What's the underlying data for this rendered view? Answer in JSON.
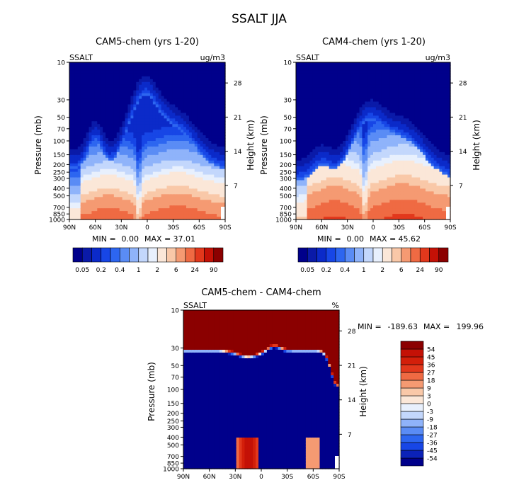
{
  "page_title": "SSALT JJA",
  "chart_data": [
    {
      "type": "heatmap",
      "title": "CAM5-chem (yrs 1-20)",
      "variable": "SSALT",
      "units": "ug/m3",
      "ylabel": "Pressure (mb)",
      "y2label": "Height (km)",
      "x_ticks": [
        "90N",
        "60N",
        "30N",
        "0",
        "30S",
        "60S",
        "90S"
      ],
      "y_ticks": [
        "10",
        "30",
        "50",
        "70",
        "100",
        "150",
        "200",
        "250",
        "300",
        "400",
        "500",
        "700",
        "850",
        "1000"
      ],
      "y2_ticks": [
        "28",
        "21",
        "14",
        "7"
      ],
      "min_label": "MIN =",
      "min": "0.00",
      "max_label": "MAX =",
      "max": "37.01",
      "levels": [
        0.05,
        0.1,
        0.2,
        0.3,
        0.4,
        0.6,
        1,
        1.5,
        2,
        4,
        6,
        12,
        24,
        48,
        90
      ],
      "level_labels": [
        "0.05",
        "0.2",
        "0.4",
        "1",
        "2",
        "6",
        "24",
        "90"
      ],
      "colors": [
        "#00008b",
        "#0a1aa8",
        "#0b2ac9",
        "#1746e6",
        "#2d66f0",
        "#5a8cf5",
        "#8fb3fa",
        "#c3d7fc",
        "#e8f0fd",
        "#fbe7d8",
        "#f9c8a8",
        "#f59a72",
        "#ef6a43",
        "#e2381c",
        "#c41106",
        "#8b0000"
      ]
    },
    {
      "type": "heatmap",
      "title": "CAM4-chem (yrs 1-20)",
      "variable": "SSALT",
      "units": "ug/m3",
      "ylabel": "Pressure (mb)",
      "y2label": "Height (km)",
      "x_ticks": [
        "90N",
        "60N",
        "30N",
        "0",
        "30S",
        "60S",
        "90S"
      ],
      "y_ticks": [
        "10",
        "30",
        "50",
        "70",
        "100",
        "150",
        "200",
        "250",
        "300",
        "400",
        "500",
        "700",
        "850",
        "1000"
      ],
      "y2_ticks": [
        "28",
        "21",
        "14",
        "7"
      ],
      "min_label": "MIN =",
      "min": "0.00",
      "max_label": "MAX =",
      "max": "45.62",
      "levels": [
        0.05,
        0.1,
        0.2,
        0.3,
        0.4,
        0.6,
        1,
        1.5,
        2,
        4,
        6,
        12,
        24,
        48,
        90
      ],
      "level_labels": [
        "0.05",
        "0.2",
        "0.4",
        "1",
        "2",
        "6",
        "24",
        "90"
      ]
    },
    {
      "type": "heatmap",
      "title": "CAM5-chem - CAM4-chem",
      "variable": "SSALT",
      "units": "%",
      "ylabel": "Pressure (mb)",
      "y2label": "Height (km)",
      "x_ticks": [
        "90N",
        "60N",
        "30N",
        "0",
        "30S",
        "60S",
        "90S"
      ],
      "y_ticks": [
        "10",
        "30",
        "50",
        "70",
        "100",
        "150",
        "200",
        "250",
        "300",
        "400",
        "500",
        "700",
        "850",
        "1000"
      ],
      "y2_ticks": [
        "28",
        "21",
        "14",
        "7"
      ],
      "min_label": "MIN =",
      "min": "-189.63",
      "max_label": "MAX =",
      "max": "199.96",
      "levels": [
        -54,
        -45,
        -36,
        -27,
        -18,
        -9,
        -3,
        0,
        3,
        9,
        18,
        27,
        36,
        45,
        54
      ],
      "level_labels": [
        "-54",
        "-45",
        "-36",
        "-27",
        "-18",
        "-9",
        "-3",
        "0",
        "3",
        "9",
        "18",
        "27",
        "36",
        "45",
        "54"
      ],
      "colors": [
        "#00008b",
        "#0b22b8",
        "#1746e6",
        "#2d66f0",
        "#5a8cf5",
        "#8fb3fa",
        "#c3d7fc",
        "#e8f0fd",
        "#fbe7d8",
        "#f9c8a8",
        "#f59a72",
        "#ef6a43",
        "#e2381c",
        "#d31f0a",
        "#c41106",
        "#8b0000"
      ]
    }
  ]
}
